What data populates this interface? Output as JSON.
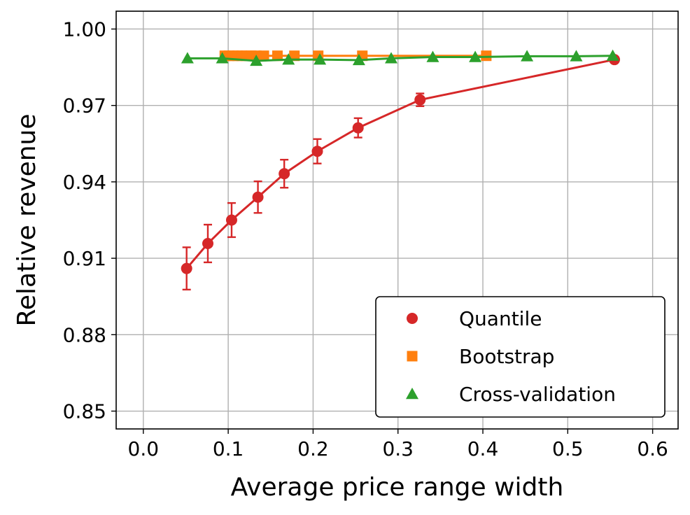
{
  "chart_data": {
    "type": "line",
    "title": "",
    "xlabel": "Average price range width",
    "ylabel": "Relative revenue",
    "xlim": [
      -0.032,
      0.63
    ],
    "ylim": [
      0.843,
      1.007
    ],
    "xticks": [
      0.0,
      0.1,
      0.2,
      0.3,
      0.4,
      0.5,
      0.6
    ],
    "xtick_labels": [
      "0.0",
      "0.1",
      "0.2",
      "0.3",
      "0.4",
      "0.5",
      "0.6"
    ],
    "yticks": [
      0.85,
      0.88,
      0.91,
      0.94,
      0.97,
      1.0
    ],
    "ytick_labels": [
      "0.85",
      "0.88",
      "0.91",
      "0.94",
      "0.97",
      "1.00"
    ],
    "grid": true,
    "legend_position": "lower-right",
    "series": [
      {
        "name": "Quantile",
        "color": "#d62728",
        "marker": "circle",
        "x": [
          0.051,
          0.076,
          0.104,
          0.135,
          0.166,
          0.205,
          0.253,
          0.326,
          0.555
        ],
        "y": [
          0.906,
          0.9158,
          0.925,
          0.934,
          0.9432,
          0.952,
          0.9612,
          0.9722,
          0.988
        ],
        "err": [
          0.0083,
          0.0074,
          0.0067,
          0.0062,
          0.0055,
          0.0048,
          0.0038,
          0.0025,
          0.0
        ]
      },
      {
        "name": "Bootstrap",
        "color": "#ff7f0e",
        "marker": "square",
        "x": [
          0.096,
          0.101,
          0.106,
          0.111,
          0.116,
          0.121,
          0.127,
          0.133,
          0.142,
          0.158,
          0.178,
          0.206,
          0.258,
          0.404
        ],
        "y": [
          0.9895,
          0.9895,
          0.9895,
          0.9895,
          0.9895,
          0.9895,
          0.9895,
          0.9895,
          0.9895,
          0.9895,
          0.9895,
          0.9895,
          0.9895,
          0.9895
        ]
      },
      {
        "name": "Cross-validation",
        "color": "#2ca02c",
        "marker": "triangle",
        "x": [
          0.052,
          0.093,
          0.133,
          0.171,
          0.208,
          0.254,
          0.292,
          0.341,
          0.391,
          0.452,
          0.51,
          0.553
        ],
        "y": [
          0.9885,
          0.9885,
          0.9875,
          0.988,
          0.988,
          0.9878,
          0.9885,
          0.989,
          0.989,
          0.9893,
          0.9893,
          0.9895
        ]
      }
    ]
  }
}
